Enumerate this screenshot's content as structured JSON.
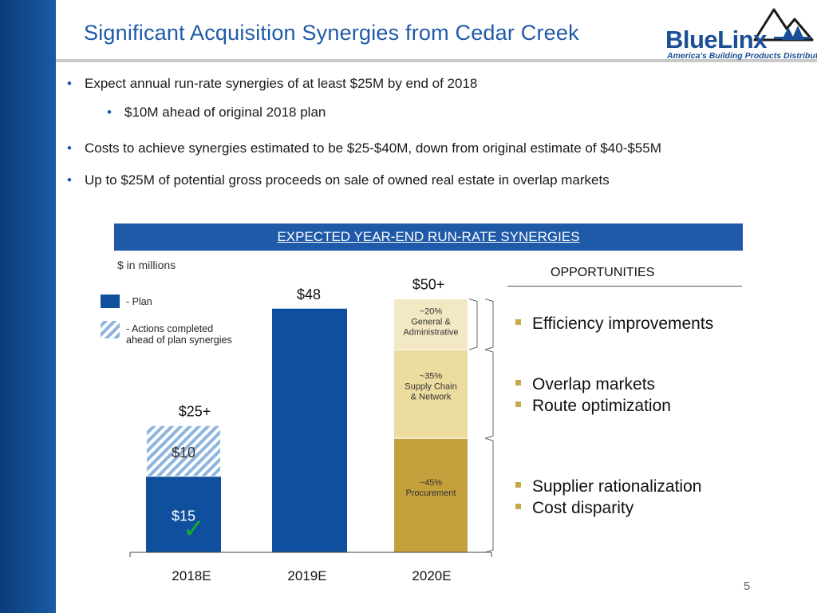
{
  "title": "Significant Acquisition Synergies from Cedar Creek",
  "logo": {
    "brand": "BlueLinx",
    "tagline": "America's Building Products Distributor"
  },
  "bullets": [
    {
      "text": "Expect annual run-rate synergies of at least $25M by end of 2018",
      "level": 1
    },
    {
      "text": "$10M ahead of original 2018 plan",
      "level": 2
    },
    {
      "text": "Costs to achieve synergies estimated to be $25-$40M, down from original estimate of $40-$55M",
      "level": 1
    },
    {
      "text": "Up to $25M of potential gross proceeds on sale of owned real estate in overlap markets",
      "level": 1
    }
  ],
  "bullet_glyph": "•",
  "banner": "EXPECTED YEAR-END RUN-RATE SYNERGIES",
  "units": "$ in millions",
  "legend": {
    "plan": "- Plan",
    "ahead_line1": "- Actions completed",
    "ahead_line2": "ahead of plan synergies"
  },
  "opportunities": {
    "heading": "OPPORTUNITIES",
    "groups": [
      {
        "items": [
          "Efficiency improvements"
        ]
      },
      {
        "items": [
          "Overlap markets",
          "Route optimization"
        ]
      },
      {
        "items": [
          "Supplier rationalization",
          "Cost disparity"
        ]
      }
    ]
  },
  "chart_data": {
    "type": "bar",
    "categories": [
      "2018E",
      "2019E",
      "2020E"
    ],
    "ylim": [
      0,
      55
    ],
    "bars": [
      {
        "category": "2018E",
        "total_label": "$25+",
        "segments": [
          {
            "value": 15,
            "label": "$15",
            "kind": "plan"
          },
          {
            "value": 10,
            "label": "$10",
            "kind": "ahead"
          }
        ]
      },
      {
        "category": "2019E",
        "total_label": "$48",
        "segments": [
          {
            "value": 48,
            "label": "",
            "kind": "plan"
          }
        ]
      },
      {
        "category": "2020E",
        "total_label": "$50+",
        "segments": [
          {
            "value": 22.5,
            "label_lines": [
              "~45%",
              "Procurement"
            ],
            "kind": "procurement"
          },
          {
            "value": 17.5,
            "label_lines": [
              "~35%",
              "Supply Chain",
              "& Network"
            ],
            "kind": "supply"
          },
          {
            "value": 10,
            "label_lines": [
              "~20%",
              "General &",
              "Administrative"
            ],
            "kind": "ga"
          }
        ]
      }
    ],
    "checkmark": "✓",
    "colors": {
      "plan": "#0f4f9e",
      "ahead": "#8fb4de",
      "procurement": "#c4a03c",
      "supply": "#eddca0",
      "ga": "#f3e8c4",
      "check": "#1aa834"
    }
  },
  "page_number": "5"
}
